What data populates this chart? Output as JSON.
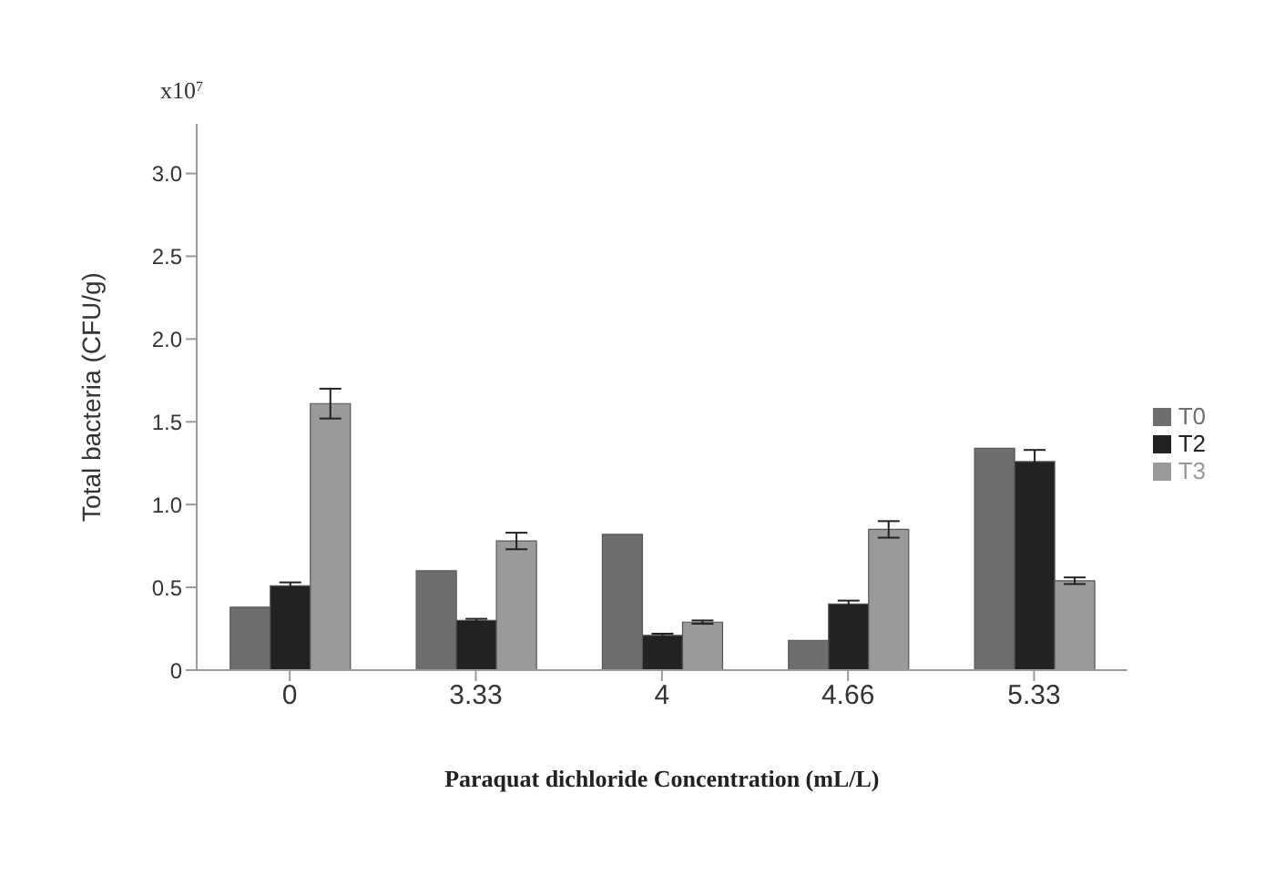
{
  "chart_data": {
    "type": "bar",
    "xlabel": "Paraquat  dichloride Concentration (mL/L)",
    "ylabel": "Total bacteria (CFU/g)",
    "annotations": [
      "x10$^{7}$"
    ],
    "categories": [
      "0",
      "3.33",
      "4",
      "4.66",
      "5.33"
    ],
    "series": [
      {
        "name": "T0",
        "color": "#6e6e6e",
        "values": [
          0.38,
          0.6,
          0.82,
          0.18,
          1.34
        ]
      },
      {
        "name": "T2",
        "color": "#222222",
        "values": [
          0.51,
          0.3,
          0.21,
          0.4,
          1.26
        ],
        "errors": [
          0.02,
          0.01,
          0.01,
          0.02,
          0.07
        ]
      },
      {
        "name": "T3",
        "color": "#9a9a9a",
        "values": [
          1.61,
          0.78,
          0.29,
          0.85,
          0.54
        ],
        "errors": [
          0.09,
          0.05,
          0.01,
          0.05,
          0.02
        ]
      }
    ],
    "ylim": [
      0,
      3.3
    ],
    "yticks": [
      0,
      {
        "value": 0.5,
        "label": "0.5"
      },
      {
        "value": 1,
        "label": "1.0"
      },
      {
        "value": 1.5,
        "label": "1.5"
      },
      {
        "value": 2,
        "label": "2.0"
      },
      {
        "value": 2.5,
        "label": "2.5"
      },
      {
        "value": 3,
        "label": "3.0"
      }
    ],
    "grid": false,
    "legend": "right"
  }
}
